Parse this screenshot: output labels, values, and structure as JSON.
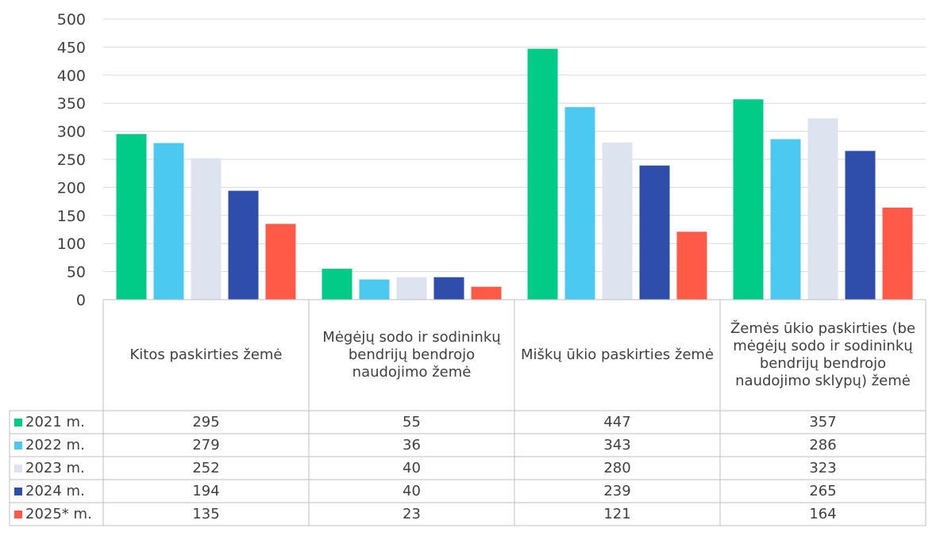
{
  "chart_data": {
    "type": "bar",
    "title": "",
    "xlabel": "",
    "ylabel": "",
    "ylim": [
      0,
      500
    ],
    "yticks": [
      0,
      50,
      100,
      150,
      200,
      250,
      300,
      350,
      400,
      450,
      500
    ],
    "grid": true,
    "legend": "data-table-left",
    "categories": [
      "Kitos paskirties žemė",
      "Mėgėjų sodo ir sodininkų bendrijų bendrojo naudojimo žemė",
      "Miškų ūkio paskirties žemė",
      "Žemės ūkio paskirties (be mėgėjų sodo ir sodininkų bendrijų bendrojo naudojimo sklypų) žemė"
    ],
    "series": [
      {
        "name": "2021 m.",
        "color": "#00CC88",
        "values": [
          295,
          55,
          447,
          357
        ]
      },
      {
        "name": "2022 m.",
        "color": "#4CC9F0",
        "values": [
          279,
          36,
          343,
          286
        ]
      },
      {
        "name": "2023 m.",
        "color": "#DEE4EF",
        "values": [
          252,
          40,
          280,
          323
        ]
      },
      {
        "name": "2024 m.",
        "color": "#2F4DAA",
        "values": [
          194,
          40,
          239,
          265
        ]
      },
      {
        "name": "2025* m.",
        "color": "#FF5A48",
        "values": [
          135,
          23,
          121,
          164
        ]
      }
    ]
  }
}
